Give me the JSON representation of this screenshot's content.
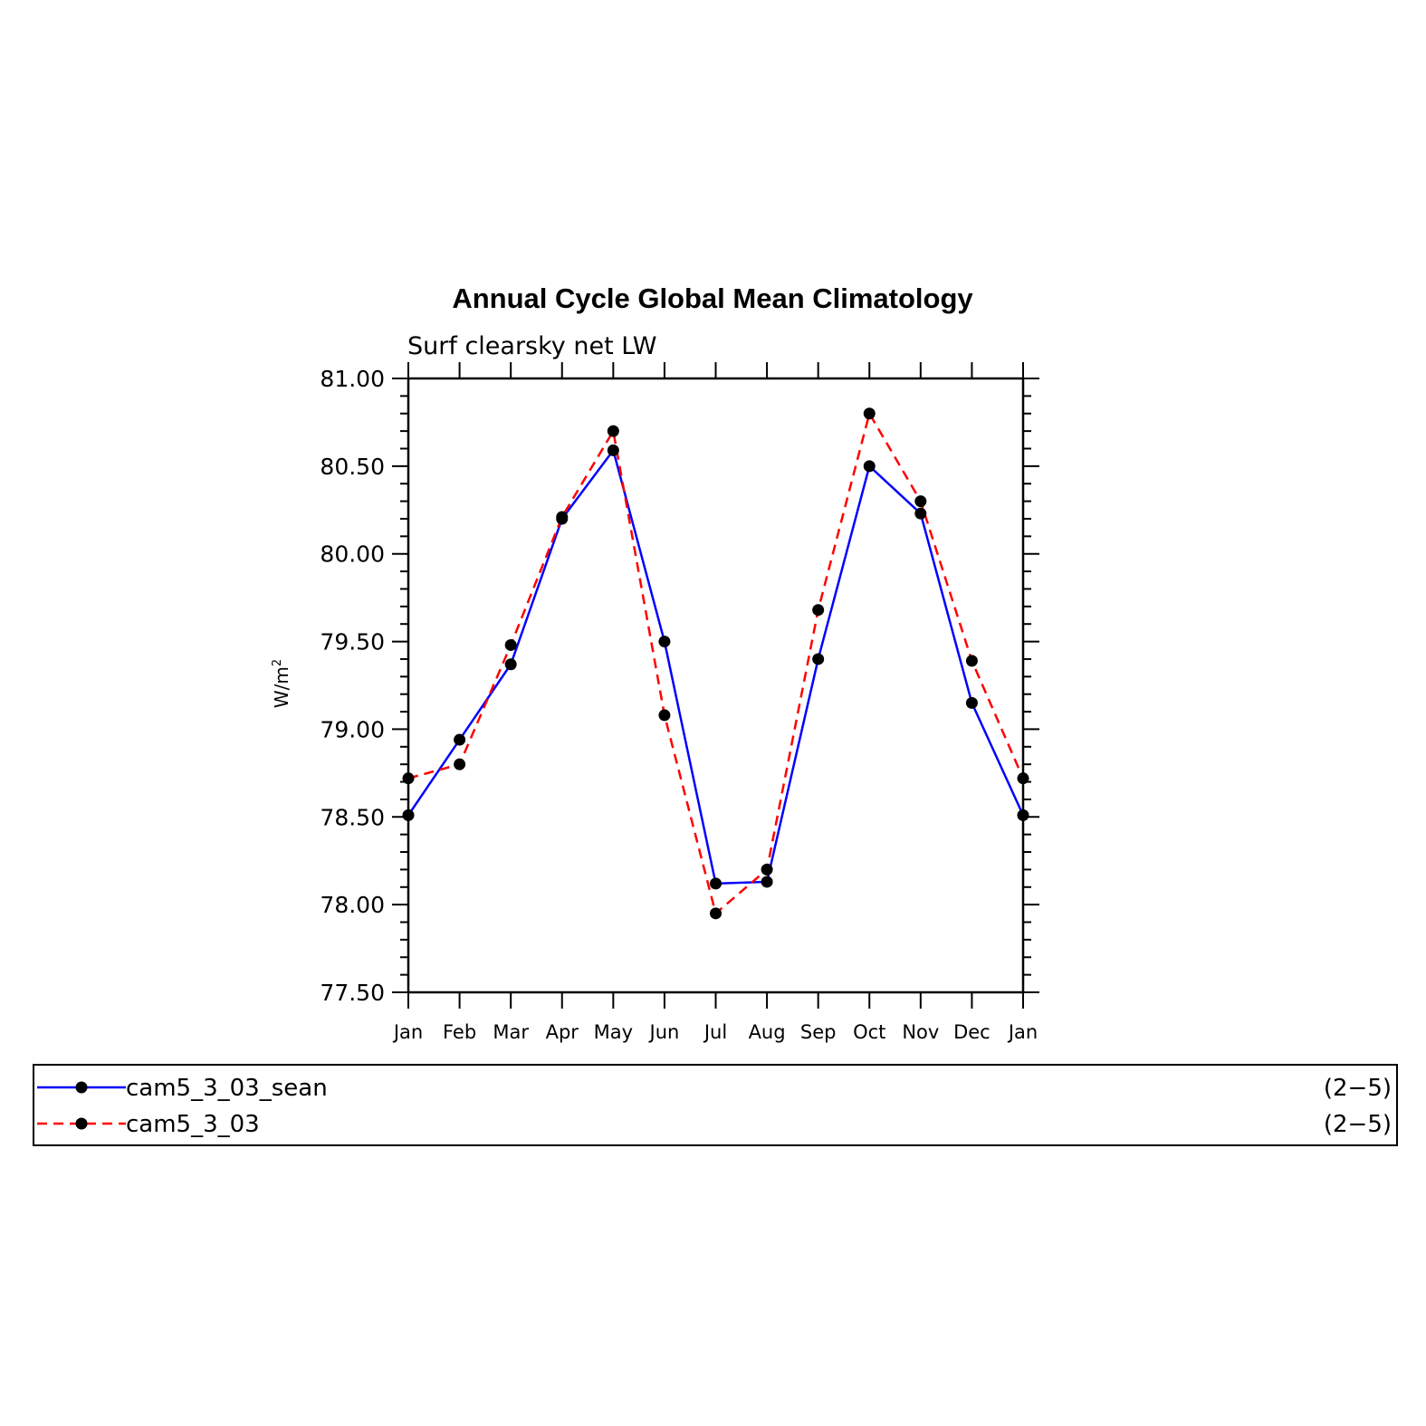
{
  "chart_data": {
    "type": "line",
    "title": "Annual Cycle Global Mean Climatology",
    "subtitle": "Surf clearsky net LW",
    "xlabel": "",
    "ylabel": "W/m",
    "ylabel_sup": "2",
    "categories": [
      "Jan",
      "Feb",
      "Mar",
      "Apr",
      "May",
      "Jun",
      "Jul",
      "Aug",
      "Sep",
      "Oct",
      "Nov",
      "Dec",
      "Jan"
    ],
    "ylim": [
      77.5,
      81.0
    ],
    "yticks": [
      "77.50",
      "78.00",
      "78.50",
      "79.00",
      "79.50",
      "80.00",
      "80.50",
      "81.00"
    ],
    "grid": false,
    "legend_position": "bottom",
    "series": [
      {
        "name": "cam5_3_03_sean",
        "legend_note": "(2−5)",
        "color": "#0000ff",
        "style": "solid",
        "values": [
          78.51,
          78.94,
          79.37,
          80.2,
          80.59,
          79.5,
          78.12,
          78.13,
          79.4,
          80.5,
          80.23,
          79.15,
          78.51
        ]
      },
      {
        "name": "cam5_3_03",
        "legend_note": "(2−5)",
        "color": "#ff0000",
        "style": "dashed",
        "values": [
          78.72,
          78.8,
          79.48,
          80.21,
          80.7,
          79.08,
          77.95,
          78.2,
          79.68,
          80.8,
          80.3,
          79.39,
          78.72
        ]
      }
    ]
  }
}
